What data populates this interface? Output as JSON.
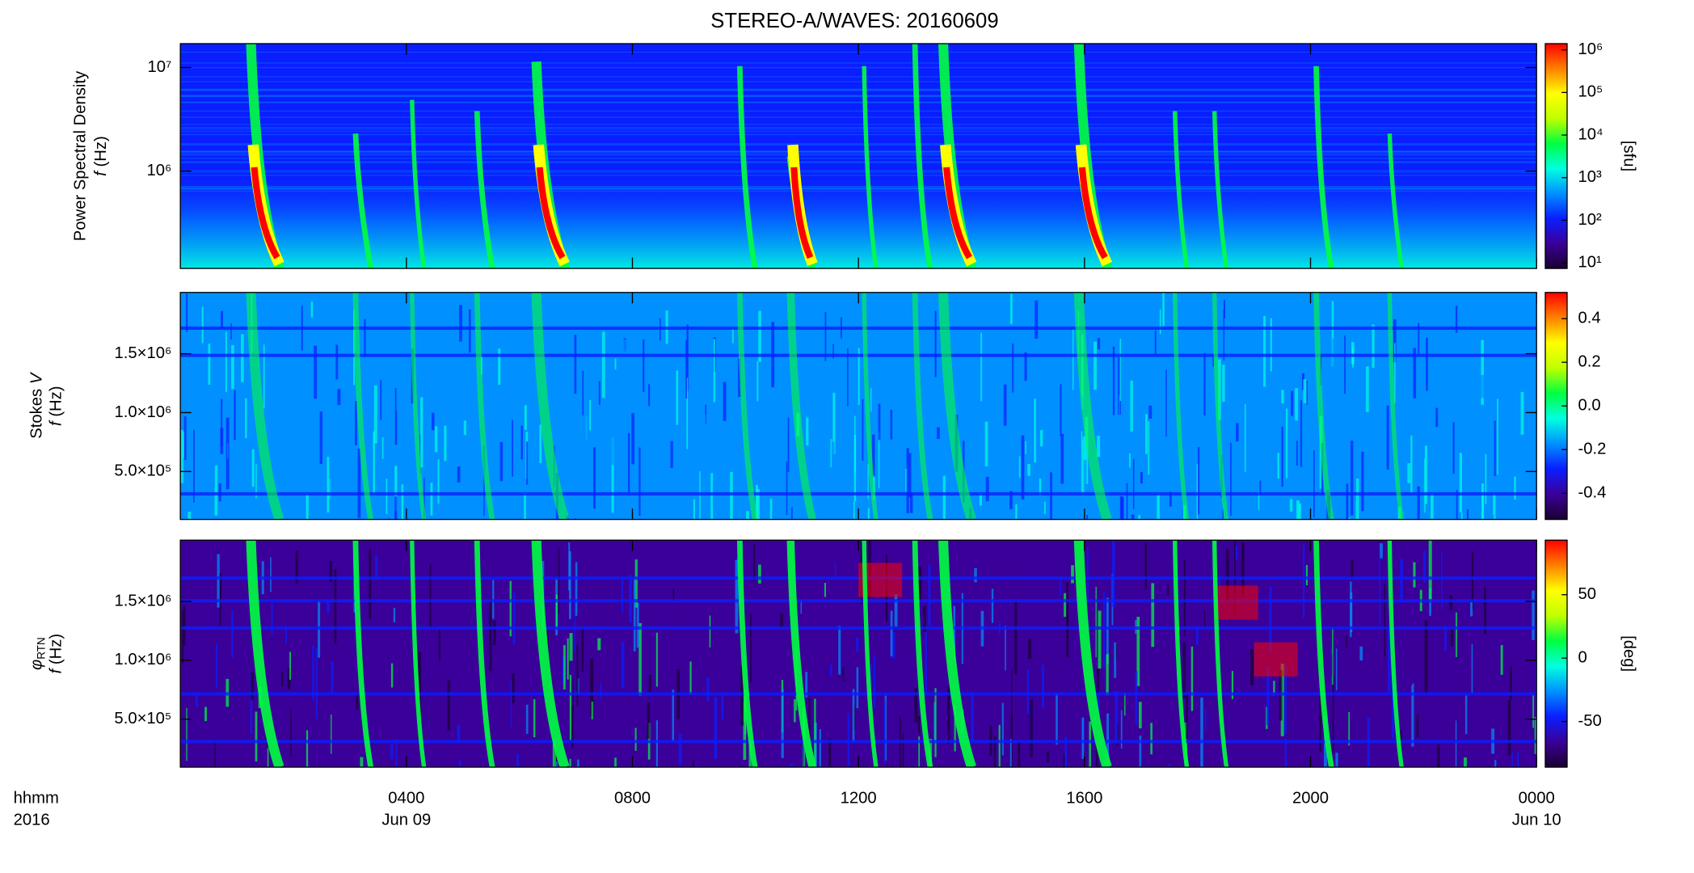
{
  "chart_data": [
    {
      "type": "heatmap",
      "title": "STEREO-A/WAVES: 20160609",
      "ylabel": "Power Spectral Density",
      "ysymbol": "f",
      "yunit": "(Hz)",
      "yscale": "log",
      "ylim": [
        115000,
        17000000
      ],
      "yticks": [
        {
          "value": 1000000,
          "label": "10⁶"
        },
        {
          "value": 10000000,
          "label": "10⁷"
        }
      ],
      "colorbar": {
        "label": "[sfu]",
        "scale": "log",
        "lim": [
          7.4,
          1400000
        ],
        "ticks": [
          {
            "value": 10,
            "label": "10¹"
          },
          {
            "value": 100,
            "label": "10²"
          },
          {
            "value": 1000,
            "label": "10³"
          },
          {
            "value": 10000,
            "label": "10⁴"
          },
          {
            "value": 100000,
            "label": "10⁵"
          },
          {
            "value": 1000000,
            "label": "10⁶"
          }
        ],
        "colors": [
          "#1a0030",
          "#3a0099",
          "#0a1eff",
          "#0090ff",
          "#00ffe0",
          "#00ff40",
          "#c0ff00",
          "#ffff00",
          "#ff8000",
          "#ff0000"
        ]
      }
    },
    {
      "type": "heatmap",
      "ylabel": "Stokes",
      "ylabel_symbol": "V",
      "ysymbol": "f",
      "yunit": "(Hz)",
      "yscale": "linear",
      "ylim": [
        93000,
        2020000
      ],
      "yticks": [
        {
          "value": 500000,
          "label": "5.0×10⁵"
        },
        {
          "value": 1000000,
          "label": "1.0×10⁶"
        },
        {
          "value": 1500000,
          "label": "1.5×10⁶"
        }
      ],
      "colorbar": {
        "scale": "linear",
        "lim": [
          -0.52,
          0.52
        ],
        "ticks": [
          -0.4,
          -0.2,
          {
            "value": 0,
            "label": "0.0"
          },
          0.2,
          0.4
        ],
        "colors": [
          "#1a0030",
          "#3a0099",
          "#0a1eff",
          "#0090ff",
          "#00ffe0",
          "#00ff40",
          "#c0ff00",
          "#ffff00",
          "#ff8000",
          "#ff0000"
        ]
      }
    },
    {
      "type": "heatmap",
      "ylabel_symbol": "φ",
      "ylabel_subscript": "RTN",
      "ysymbol": "f",
      "yunit": "(Hz)",
      "yscale": "linear",
      "ylim": [
        93000,
        2020000
      ],
      "yticks": [
        {
          "value": 500000,
          "label": "5.0×10⁵"
        },
        {
          "value": 1000000,
          "label": "1.0×10⁶"
        },
        {
          "value": 1500000,
          "label": "1.5×10⁶"
        }
      ],
      "colorbar": {
        "label": "[deg]",
        "scale": "linear",
        "lim": [
          -86,
          93
        ],
        "ticks": [
          -50,
          0,
          50
        ],
        "colors": [
          "#1a0030",
          "#3a0099",
          "#0a1eff",
          "#0090ff",
          "#00ffe0",
          "#00ff40",
          "#c0ff00",
          "#ffff00",
          "#ff8000",
          "#ff0000"
        ]
      },
      "xlabel": "hhmm",
      "year": "2016",
      "xlim": [
        0,
        24
      ],
      "xticks": [
        {
          "value": 4,
          "label": "0400"
        },
        {
          "value": 8,
          "label": "0800"
        },
        {
          "value": 12,
          "label": "1200"
        },
        {
          "value": 16,
          "label": "1600"
        },
        {
          "value": 20,
          "label": "2000"
        },
        {
          "value": 24,
          "label": "0000"
        }
      ],
      "date_labels": [
        {
          "value": 4,
          "label": "Jun 09"
        },
        {
          "value": 24,
          "label": "Jun 10"
        }
      ]
    }
  ]
}
